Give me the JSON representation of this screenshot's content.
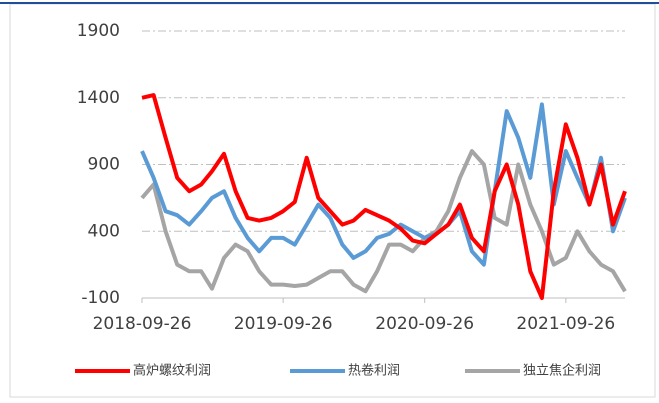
{
  "chart_data": {
    "type": "line",
    "x": [
      "2018-09-26",
      "2018-10-26",
      "2018-11-26",
      "2018-12-26",
      "2019-01-26",
      "2019-02-26",
      "2019-03-26",
      "2019-04-26",
      "2019-05-26",
      "2019-06-26",
      "2019-07-26",
      "2019-08-26",
      "2019-09-26",
      "2019-10-26",
      "2019-11-26",
      "2019-12-26",
      "2020-01-26",
      "2020-02-26",
      "2020-03-26",
      "2020-04-26",
      "2020-05-26",
      "2020-06-26",
      "2020-07-26",
      "2020-08-26",
      "2020-09-26",
      "2020-10-26",
      "2020-11-26",
      "2020-12-26",
      "2021-01-26",
      "2021-02-26",
      "2021-03-26",
      "2021-04-26",
      "2021-05-26",
      "2021-06-26",
      "2021-07-26",
      "2021-08-26",
      "2021-09-26",
      "2021-10-26",
      "2021-11-26",
      "2021-12-26",
      "2022-01-26",
      "2022-02-26"
    ],
    "series": [
      {
        "name": "高炉螺纹利润",
        "color": "#ff0000",
        "values": [
          1400,
          1420,
          1100,
          800,
          700,
          750,
          850,
          980,
          700,
          500,
          480,
          500,
          550,
          620,
          950,
          650,
          550,
          450,
          480,
          560,
          520,
          480,
          420,
          330,
          310,
          380,
          450,
          600,
          350,
          250,
          700,
          900,
          600,
          100,
          -100,
          700,
          1200,
          950,
          600,
          900,
          450,
          700
        ]
      },
      {
        "name": "热卷利润",
        "color": "#5b9bd5",
        "values": [
          1000,
          800,
          550,
          520,
          450,
          550,
          650,
          700,
          500,
          350,
          250,
          350,
          350,
          300,
          450,
          600,
          500,
          300,
          200,
          250,
          350,
          380,
          450,
          400,
          350,
          380,
          450,
          550,
          250,
          150,
          700,
          1300,
          1100,
          800,
          1350,
          600,
          1000,
          800,
          600,
          950,
          400,
          650
        ]
      },
      {
        "name": "独立焦企利润",
        "color": "#a5a5a5",
        "values": [
          650,
          750,
          400,
          150,
          100,
          100,
          -30,
          200,
          300,
          250,
          100,
          0,
          0,
          -10,
          0,
          50,
          100,
          100,
          0,
          -50,
          100,
          300,
          300,
          250,
          350,
          400,
          550,
          800,
          1000,
          900,
          500,
          450,
          900,
          600,
          400,
          150,
          200,
          400,
          250,
          150,
          100,
          -50
        ]
      }
    ],
    "xlim": [
      "2018-09-26",
      "2022-02-26"
    ],
    "xticks": [
      "2018-09-26",
      "2019-09-26",
      "2020-09-26",
      "2021-09-26"
    ],
    "ylim": [
      -100,
      1900
    ],
    "yticks": [
      -100,
      400,
      900,
      1400,
      1900
    ],
    "grid": true
  }
}
